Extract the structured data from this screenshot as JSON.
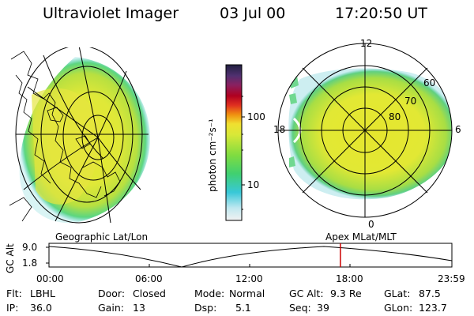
{
  "header": {
    "instrument": "Ultraviolet Imager",
    "date": "03 Jul 00",
    "time": "17:20:50 UT"
  },
  "colorbar": {
    "unit_label": "photon cm⁻²s⁻¹",
    "ticks": [
      "100",
      "10"
    ]
  },
  "left_panel": {
    "caption": "Geographic Lat/Lon"
  },
  "right_panel": {
    "caption": "Apex MLat/MLT",
    "mlt_labels": [
      "12",
      "18",
      "6",
      "0"
    ],
    "lat_labels": [
      "60",
      "70",
      "80"
    ]
  },
  "altitude_plot": {
    "ylabel": "GC Alt",
    "yticks": [
      "9.0",
      "1.8"
    ],
    "time_ticks": [
      "00:00",
      "06:00",
      "12:00",
      "18:00",
      "23:59"
    ],
    "current_marker_time": "17:20:50",
    "marker_color": "#cc0000"
  },
  "status": {
    "flt_label": "Flt:",
    "flt_value": "LBHL",
    "ip_label": "IP:",
    "ip_value": "36.0",
    "door_label": "Door:",
    "door_value": "Closed",
    "gain_label": "Gain:",
    "gain_value": "13",
    "mode_label": "Mode:",
    "mode_value": "Normal",
    "dsp_label": "Dsp:",
    "dsp_value": "5.1",
    "gcalt_label": "GC Alt:",
    "gcalt_value": "9.3 Re",
    "seq_label": "Seq:",
    "seq_value": "39",
    "glat_label": "GLat:",
    "glat_value": "87.5",
    "glon_label": "GLon:",
    "glon_value": "123.7"
  }
}
